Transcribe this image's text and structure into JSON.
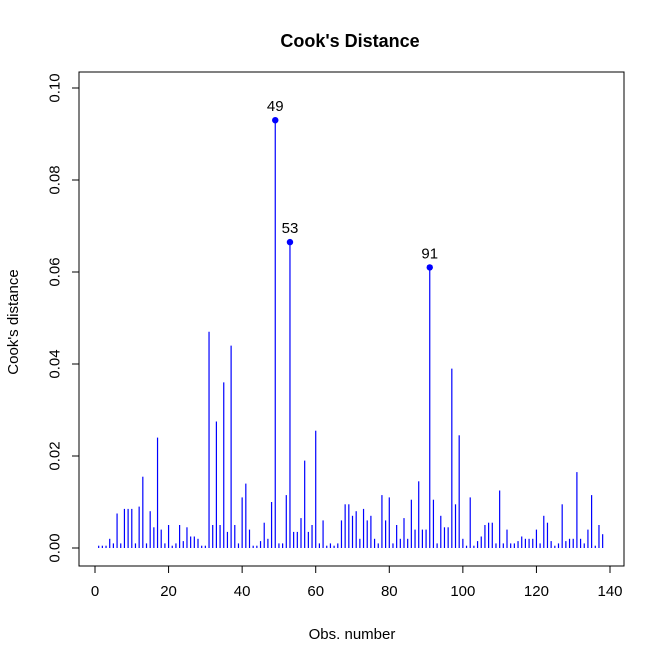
{
  "chart_data": {
    "type": "bar",
    "title": "Cook's Distance",
    "xlabel": "Obs. number",
    "ylabel": "Cook's distance",
    "xlim": [
      0,
      138
    ],
    "ylim": [
      0,
      0.1
    ],
    "x_ticks": [
      "0",
      "20",
      "40",
      "60",
      "80",
      "100",
      "120",
      "140"
    ],
    "x_tick_values": [
      0,
      20,
      40,
      60,
      80,
      100,
      120,
      140
    ],
    "y_ticks": [
      "0.00",
      "0.02",
      "0.04",
      "0.06",
      "0.08",
      "0.10"
    ],
    "y_tick_values": [
      0,
      0.02,
      0.04,
      0.06,
      0.08,
      0.1
    ],
    "bar_color": "#0000ff",
    "point_color": "#0000ff",
    "grid": false,
    "legend": "none",
    "series": [
      {
        "values": [
          0.0005,
          0.0005,
          0.0005,
          0.002,
          0.001,
          0.0075,
          0.001,
          0.0085,
          0.0085,
          0.0085,
          0.001,
          0.009,
          0.0155,
          0.001,
          0.008,
          0.0045,
          0.024,
          0.004,
          0.001,
          0.005,
          0.0005,
          0.001,
          0.005,
          0.0015,
          0.0045,
          0.0025,
          0.0025,
          0.002,
          0.0005,
          0.0005,
          0.047,
          0.005,
          0.0275,
          0.005,
          0.036,
          0.0035,
          0.044,
          0.005,
          0.001,
          0.011,
          0.014,
          0.004,
          0.0005,
          0.0005,
          0.0015,
          0.0055,
          0.002,
          0.01,
          0.093,
          0.001,
          0.001,
          0.0115,
          0.0665,
          0.0035,
          0.0035,
          0.0065,
          0.019,
          0.0035,
          0.005,
          0.0255,
          0.001,
          0.006,
          0.0005,
          0.001,
          0.0005,
          0.001,
          0.006,
          0.0095,
          0.0095,
          0.007,
          0.008,
          0.002,
          0.0085,
          0.006,
          0.007,
          0.002,
          0.001,
          0.0115,
          0.006,
          0.011,
          0.001,
          0.005,
          0.002,
          0.0065,
          0.002,
          0.0105,
          0.004,
          0.0145,
          0.004,
          0.004,
          0.061,
          0.0105,
          0.001,
          0.007,
          0.0045,
          0.0045,
          0.039,
          0.0095,
          0.0245,
          0.002,
          0.0005,
          0.011,
          0.0005,
          0.0015,
          0.0025,
          0.005,
          0.0055,
          0.0055,
          0.001,
          0.0125,
          0.001,
          0.004,
          0.001,
          0.001,
          0.0015,
          0.0025,
          0.002,
          0.002,
          0.002,
          0.004,
          0.001,
          0.007,
          0.0055,
          0.0015,
          0.0005,
          0.001,
          0.0095,
          0.0015,
          0.002,
          0.002,
          0.0165,
          0.002,
          0.001,
          0.004,
          0.0115,
          0.0005,
          0.005,
          0.003
        ]
      }
    ],
    "highlighted_points": [
      {
        "x": 49,
        "y": 0.093,
        "label": "49"
      },
      {
        "x": 53,
        "y": 0.0665,
        "label": "53"
      },
      {
        "x": 91,
        "y": 0.061,
        "label": "91"
      }
    ]
  }
}
